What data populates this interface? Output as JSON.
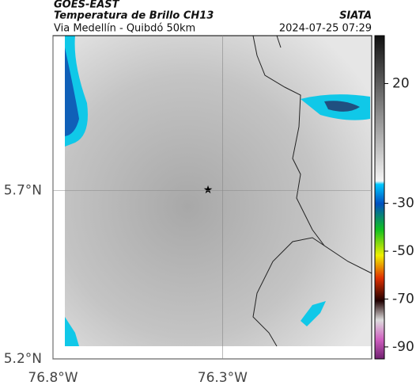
{
  "header": {
    "source": "GOES-EAST",
    "title": "Temperatura de Brillo CH13",
    "subtitle": "Via Medellín - Quibdó 50km",
    "org": "SIATA",
    "datetime": "2024-07-25 07:29"
  },
  "map": {
    "xlim": [
      -76.8,
      -75.86
    ],
    "ylim": [
      5.2,
      6.16
    ],
    "xticks": [
      {
        "value": -76.8,
        "label": "76.8°W"
      },
      {
        "value": -76.3,
        "label": "76.3°W"
      }
    ],
    "yticks": [
      {
        "value": 5.7,
        "label": "5.7°N"
      },
      {
        "value": 5.2,
        "label": "5.2°N"
      }
    ]
  },
  "colorbar": {
    "lim": [
      40,
      -95
    ],
    "ticks": [
      20,
      -30,
      -50,
      -70,
      -90
    ]
  }
}
